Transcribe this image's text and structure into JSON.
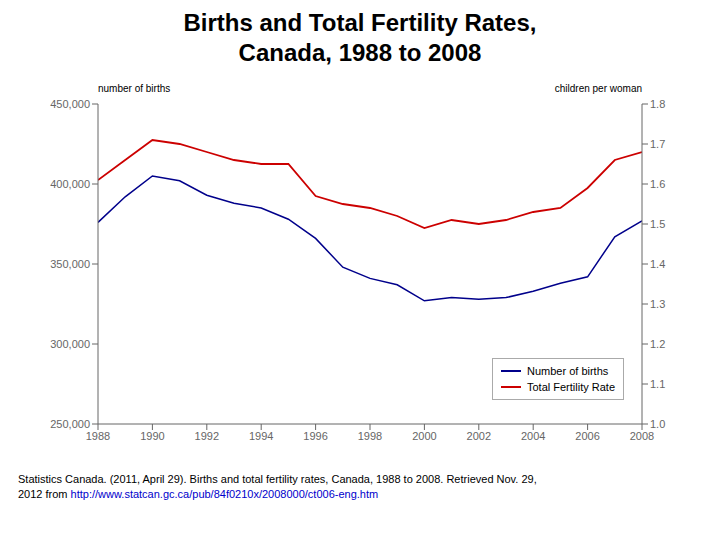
{
  "chart_data": {
    "type": "line",
    "title": "Births and Total Fertility Rates,",
    "subtitle": "Canada, 1988 to 2008",
    "x": [
      1988,
      1989,
      1990,
      1991,
      1992,
      1993,
      1994,
      1995,
      1996,
      1997,
      1998,
      1999,
      2000,
      2001,
      2002,
      2003,
      2004,
      2005,
      2006,
      2007,
      2008
    ],
    "series": [
      {
        "name": "Number of births",
        "color": "#00008B",
        "values": [
          376000,
          392000,
          405000,
          402000,
          393000,
          388000,
          385000,
          378000,
          366000,
          348000,
          341000,
          337000,
          327000,
          329000,
          328000,
          329000,
          333000,
          338000,
          342000,
          367000,
          377000
        ]
      },
      {
        "name": "Total Fertility Rate",
        "color": "#CC0000",
        "axis": "y2",
        "values": [
          1.61,
          1.66,
          1.71,
          1.7,
          1.68,
          1.66,
          1.65,
          1.65,
          1.57,
          1.55,
          1.54,
          1.52,
          1.49,
          1.51,
          1.5,
          1.51,
          1.53,
          1.54,
          1.59,
          1.66,
          1.68
        ]
      }
    ],
    "ylabel": "number of births",
    "y2label": "children per woman",
    "xlim": [
      1988,
      2008
    ],
    "xticks": [
      1988,
      1990,
      1992,
      1994,
      1996,
      1998,
      2000,
      2002,
      2004,
      2006,
      2008
    ],
    "ylim": [
      250000,
      450000
    ],
    "yticks": [
      {
        "value": 250000,
        "label": "250,000"
      },
      {
        "value": 300000,
        "label": "300,000"
      },
      {
        "value": 350000,
        "label": "350,000"
      },
      {
        "value": 400000,
        "label": "400,000"
      },
      {
        "value": 450000,
        "label": "450,000"
      }
    ],
    "y2lim": [
      1.0,
      1.8
    ],
    "y2ticks": [
      {
        "value": 1.0,
        "label": "1.0"
      },
      1.1,
      1.2,
      1.3,
      1.4,
      1.5,
      1.6,
      1.7,
      1.8
    ],
    "grid": false,
    "legend": "lower right",
    "annotations": [
      {
        "text": "Statistics Canada. (2011, April 29). Births and total fertility rates, Canada, 1988 to 2008. Retrieved Nov. 29,"
      },
      {
        "text": "2012 from "
      },
      {
        "text": "http://www.statcan.gc.ca/pub/84f0210x/2008000/ct006-eng.htm",
        "color": "#0000CC"
      }
    ]
  }
}
